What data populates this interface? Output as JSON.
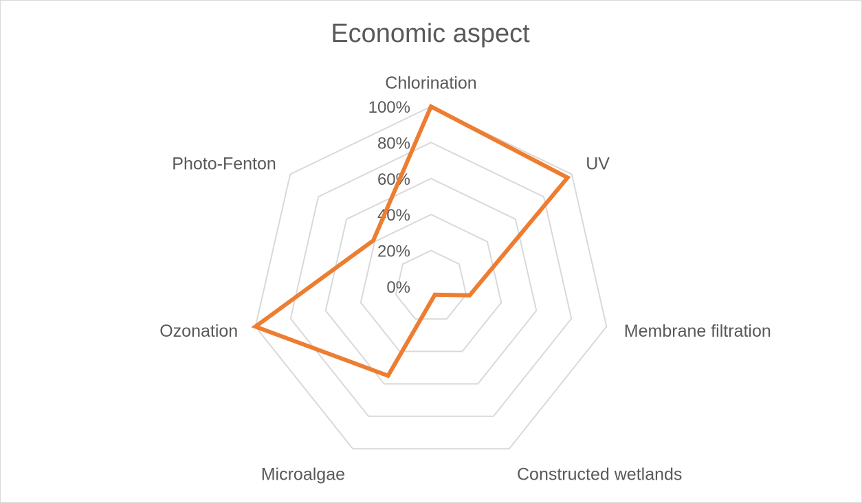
{
  "chart_data": {
    "type": "radar",
    "title": "Economic aspect",
    "categories": [
      "Chlorination",
      "UV",
      "Membrane filtration",
      "Constructed wetlands",
      "Microalgae",
      "Ozonation",
      "Photo-Fenton"
    ],
    "tick_labels": [
      "0%",
      "20%",
      "40%",
      "60%",
      "80%",
      "100%"
    ],
    "ylim": [
      0,
      1
    ],
    "grid": true,
    "legend": "none",
    "series": [
      {
        "values": [
          1.0,
          0.97,
          0.22,
          0.05,
          0.55,
          1.0,
          0.41
        ],
        "color": "#ED7D31"
      }
    ]
  }
}
